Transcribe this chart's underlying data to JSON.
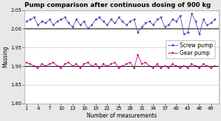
{
  "title": "Pump comparison after continuous dosing of 900 kg",
  "xlabel": "Number of measurements",
  "ylabel": "Massing",
  "xlim": [
    0.5,
    51
  ],
  "ylim": [
    1.8,
    2.05
  ],
  "yticks": [
    1.8,
    1.85,
    1.9,
    1.95,
    2.0,
    2.05
  ],
  "xticks": [
    1,
    4,
    7,
    10,
    13,
    16,
    19,
    22,
    25,
    28,
    31,
    34,
    37,
    40,
    43,
    46,
    49
  ],
  "screw_color": "#4444bb",
  "gear_color": "#bb0077",
  "plot_bg": "#ffffff",
  "fig_bg": "#e8e8e8",
  "grid_color": "#c0c0c0",
  "hline_color": "#000000",
  "screw_pump": [
    2.02,
    2.025,
    2.03,
    2.01,
    2.02,
    2.015,
    2.025,
    2.01,
    2.02,
    2.025,
    2.03,
    2.015,
    2.005,
    2.025,
    2.01,
    2.02,
    2.0,
    2.01,
    2.025,
    2.03,
    2.02,
    2.01,
    2.025,
    2.015,
    2.03,
    2.02,
    2.01,
    2.02,
    2.025,
    1.99,
    2.005,
    2.015,
    2.02,
    2.01,
    2.025,
    2.03,
    2.005,
    2.01,
    2.025,
    2.02,
    2.035,
    1.985,
    1.99,
    2.04,
    2.02,
    1.985,
    2.025,
    2.01,
    2.015,
    2.025
  ],
  "gear_pump": [
    1.91,
    1.905,
    1.9,
    1.895,
    1.905,
    1.9,
    1.905,
    1.91,
    1.9,
    1.895,
    1.905,
    1.91,
    1.9,
    1.905,
    1.895,
    1.905,
    1.91,
    1.9,
    1.905,
    1.895,
    1.905,
    1.9,
    1.905,
    1.91,
    1.895,
    1.9,
    1.905,
    1.91,
    1.895,
    1.93,
    1.905,
    1.91,
    1.9,
    1.895,
    1.905,
    1.895,
    1.9,
    1.895,
    1.905,
    1.9,
    1.895,
    1.9,
    1.895,
    1.905,
    1.9,
    1.895,
    1.905,
    1.9,
    1.895,
    1.9
  ],
  "screw_label": "Screw pump",
  "gear_label": "Gear pump",
  "title_fontsize": 6.5,
  "axis_fontsize": 5.5,
  "tick_fontsize": 5.0,
  "legend_fontsize": 5.5
}
